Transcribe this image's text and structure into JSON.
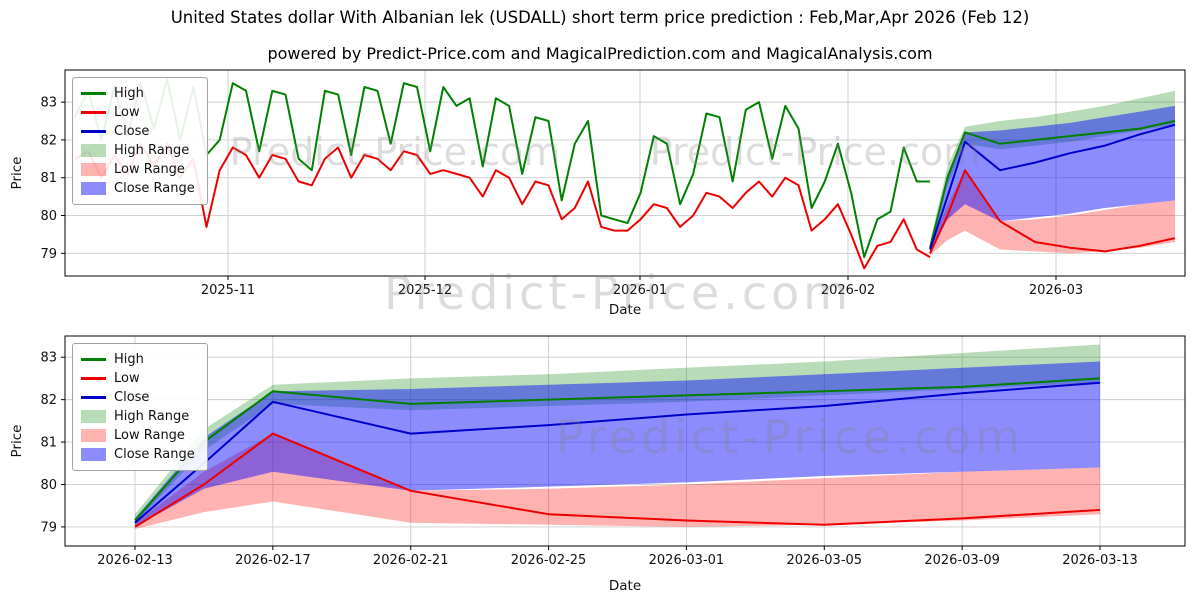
{
  "title": "United States dollar With Albanian lek (USDALL) short term price prediction : Feb,Mar,Apr 2026 (Feb 12)",
  "subtitle": "powered by Predict-Price.com and MagicalPrediction.com and MagicalAnalysis.com",
  "watermark_text": "Predict-Price.com",
  "colors": {
    "high": "#008000",
    "low": "#ee0000",
    "close": "#0000cc",
    "high_range": "rgba(0,128,0,0.28)",
    "low_range": "rgba(255,0,0,0.30)",
    "close_range": "rgba(0,0,255,0.45)",
    "grid": "#cccccc",
    "axis": "#000000",
    "watermark": "rgba(128,128,128,0.28)"
  },
  "legend_items": [
    {
      "label": "High",
      "type": "line",
      "color": "#008000"
    },
    {
      "label": "Low",
      "type": "line",
      "color": "#ee0000"
    },
    {
      "label": "Close",
      "type": "line",
      "color": "#0000cc"
    },
    {
      "label": "High Range",
      "type": "patch",
      "color": "rgba(0,128,0,0.28)"
    },
    {
      "label": "Low Range",
      "type": "patch",
      "color": "rgba(255,0,0,0.30)"
    },
    {
      "label": "Close Range",
      "type": "patch",
      "color": "rgba(0,0,255,0.45)"
    }
  ],
  "chart_data": [
    {
      "id": "history_with_forecast",
      "type": "line",
      "title": "",
      "xlabel": "Date",
      "ylabel": "Price",
      "ylim": [
        78.4,
        83.85
      ],
      "yticks": [
        79,
        80,
        81,
        82,
        83
      ],
      "xtick_labels": [
        "2025-11",
        "2025-12",
        "2026-01",
        "2026-02",
        "2026-03"
      ],
      "grid": true,
      "legend_position": "upper left",
      "historical": {
        "start_date": "2025-10-14",
        "end_date": "2026-02-12",
        "high": [
          82.6,
          83.3,
          82.0,
          83.4,
          82.1,
          83.5,
          82.3,
          83.6,
          82.0,
          83.4,
          81.6,
          82.0,
          83.5,
          83.3,
          81.7,
          83.3,
          83.2,
          81.5,
          81.2,
          83.3,
          83.2,
          81.6,
          83.4,
          83.3,
          81.9,
          83.5,
          83.4,
          81.7,
          83.4,
          82.9,
          83.1,
          81.3,
          83.1,
          82.9,
          81.1,
          82.6,
          82.5,
          80.4,
          81.9,
          82.5,
          80.0,
          79.9,
          79.8,
          80.6,
          82.1,
          81.9,
          80.3,
          81.1,
          82.7,
          82.6,
          80.9,
          82.8,
          83.0,
          81.5,
          82.9,
          82.3,
          80.2,
          80.9,
          81.9,
          80.6,
          78.9,
          79.9,
          80.1,
          81.8,
          80.9,
          80.9
        ],
        "low": [
          81.5,
          81.7,
          81.0,
          81.6,
          81.1,
          81.9,
          81.3,
          81.9,
          81.0,
          81.5,
          79.7,
          81.2,
          81.8,
          81.6,
          81.0,
          81.6,
          81.5,
          80.9,
          80.8,
          81.5,
          81.8,
          81.0,
          81.6,
          81.5,
          81.2,
          81.7,
          81.6,
          81.1,
          81.2,
          81.1,
          81.0,
          80.5,
          81.2,
          81.0,
          80.3,
          80.9,
          80.8,
          79.9,
          80.2,
          80.9,
          79.7,
          79.6,
          79.6,
          79.9,
          80.3,
          80.2,
          79.7,
          80.0,
          80.6,
          80.5,
          80.2,
          80.6,
          80.9,
          80.5,
          81.0,
          80.8,
          79.6,
          79.9,
          80.3,
          79.5,
          78.6,
          79.2,
          79.3,
          79.9,
          79.1,
          78.9
        ]
      }
    },
    {
      "id": "forecast_detail",
      "type": "area",
      "title": "",
      "xlabel": "Date",
      "ylabel": "Price",
      "ylim": [
        78.55,
        83.5
      ],
      "yticks": [
        79,
        80,
        81,
        82,
        83
      ],
      "grid": true,
      "legend_position": "upper left",
      "x": [
        "2026-02-13",
        "2026-02-15",
        "2026-02-17",
        "2026-02-21",
        "2026-02-25",
        "2026-03-01",
        "2026-03-05",
        "2026-03-09",
        "2026-03-13"
      ],
      "xtick_labels": [
        "2026-02-13",
        "2026-02-17",
        "2026-02-21",
        "2026-02-25",
        "2026-03-01",
        "2026-03-05",
        "2026-03-09",
        "2026-03-13"
      ],
      "series": [
        {
          "name": "High",
          "values": [
            79.15,
            81.0,
            82.2,
            81.9,
            82.0,
            82.1,
            82.2,
            82.3,
            82.5
          ]
        },
        {
          "name": "Low",
          "values": [
            79.0,
            80.0,
            81.2,
            79.85,
            79.3,
            79.15,
            79.05,
            79.2,
            79.4
          ]
        },
        {
          "name": "Close",
          "values": [
            79.1,
            80.5,
            81.95,
            81.2,
            81.4,
            81.65,
            81.85,
            82.15,
            82.4
          ]
        }
      ],
      "bands": [
        {
          "name": "High Range",
          "upper": [
            79.3,
            81.3,
            82.35,
            82.5,
            82.6,
            82.75,
            82.9,
            83.1,
            83.3
          ],
          "lower": [
            79.1,
            80.8,
            81.9,
            81.75,
            81.85,
            81.95,
            82.1,
            82.25,
            82.4
          ]
        },
        {
          "name": "Low Range",
          "upper": [
            79.1,
            80.3,
            81.2,
            79.85,
            79.9,
            80.0,
            80.15,
            80.3,
            80.4
          ],
          "lower": [
            78.95,
            79.35,
            79.6,
            79.1,
            79.05,
            79.0,
            79.05,
            79.15,
            79.3
          ]
        },
        {
          "name": "Close Range",
          "upper": [
            79.2,
            81.1,
            82.2,
            82.25,
            82.35,
            82.45,
            82.6,
            82.75,
            82.9
          ],
          "lower": [
            79.0,
            79.9,
            80.3,
            79.85,
            79.95,
            80.05,
            80.2,
            80.3,
            80.4
          ]
        }
      ]
    }
  ]
}
